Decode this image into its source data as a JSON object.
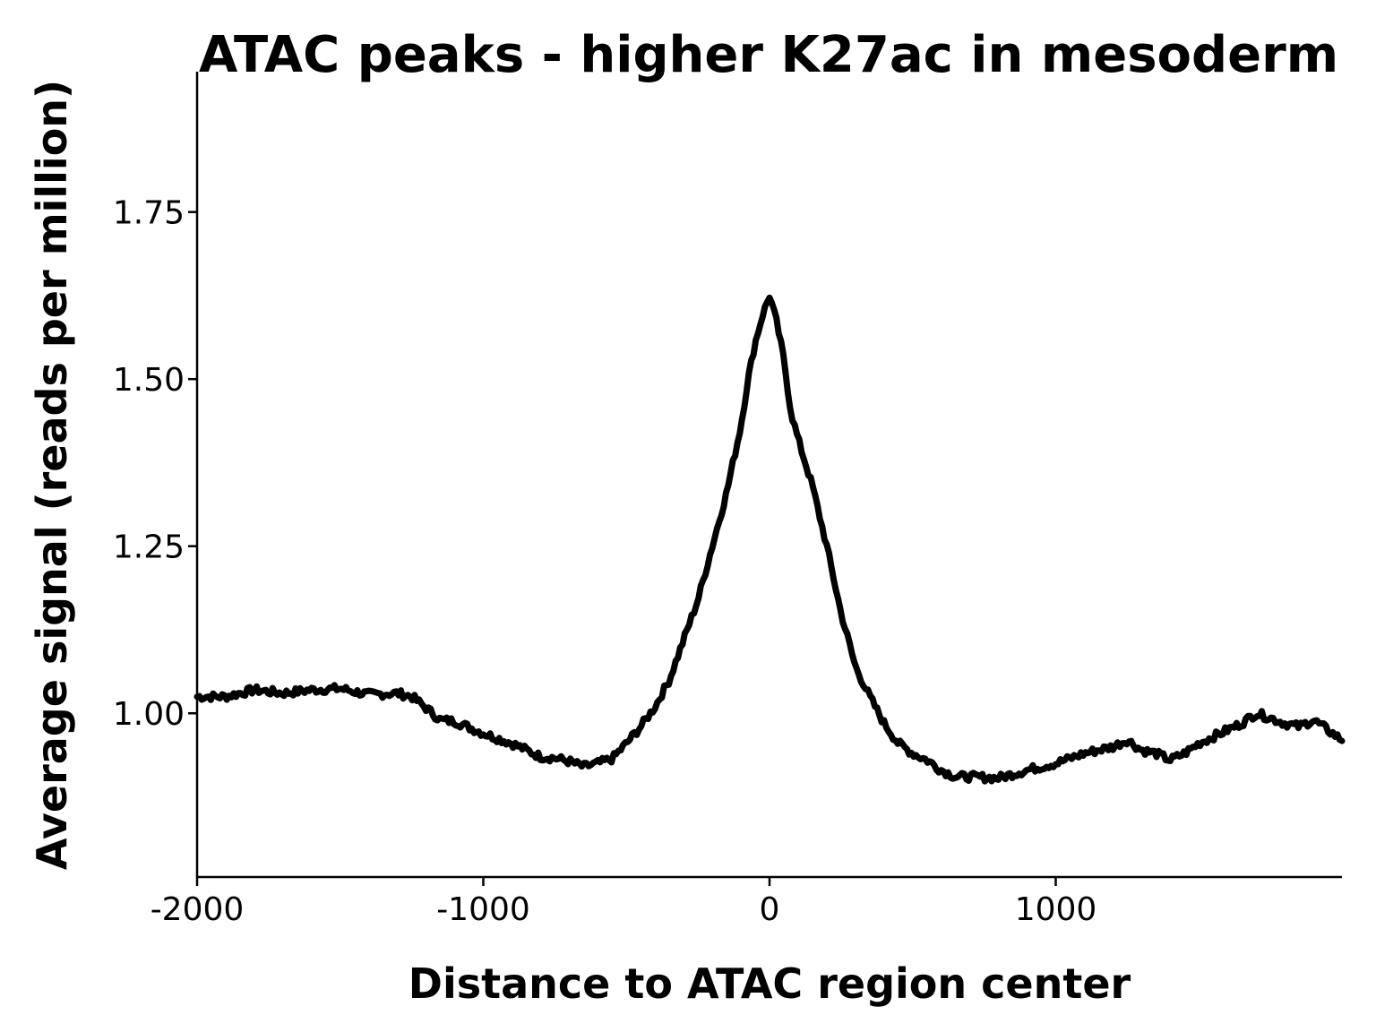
{
  "chart_data": {
    "type": "line",
    "title": "ATAC peaks - higher K27ac in mesoderm",
    "xlabel": "Distance to ATAC region center",
    "ylabel": "Average signal (reads per million)",
    "xlim": [
      -2000,
      2000
    ],
    "ylim": [
      0.755,
      1.96
    ],
    "x_ticks": [
      -2000,
      -1000,
      0,
      1000
    ],
    "x_tick_labels": [
      "-2000",
      "-1000",
      "0",
      "1000"
    ],
    "y_ticks": [
      1.0,
      1.25,
      1.5,
      1.75
    ],
    "y_tick_labels": [
      "1.00",
      "1.25",
      "1.50",
      "1.75"
    ],
    "grid": false,
    "legend": "none",
    "line_color": "#000000",
    "series": [
      {
        "x": [
          -2000,
          -1900,
          -1800,
          -1700,
          -1600,
          -1500,
          -1400,
          -1300,
          -1250,
          -1200,
          -1150,
          -1100,
          -1000,
          -900,
          -850,
          -800,
          -750,
          -700,
          -650,
          -600,
          -550,
          -500,
          -450,
          -400,
          -350,
          -300,
          -250,
          -200,
          -150,
          -100,
          -75,
          -50,
          -25,
          0,
          25,
          50,
          75,
          100,
          150,
          200,
          250,
          300,
          350,
          400,
          450,
          500,
          550,
          600,
          650,
          700,
          800,
          900,
          1000,
          1100,
          1200,
          1250,
          1300,
          1350,
          1400,
          1450,
          1500,
          1550,
          1600,
          1650,
          1700,
          1750,
          1800,
          1850,
          1900,
          1950,
          2000
        ],
        "y": [
          1.025,
          1.025,
          1.035,
          1.03,
          1.035,
          1.037,
          1.028,
          1.03,
          1.025,
          1.008,
          0.99,
          0.988,
          0.97,
          0.955,
          0.945,
          0.935,
          0.933,
          0.928,
          0.92,
          0.925,
          0.932,
          0.955,
          0.98,
          1.01,
          1.05,
          1.11,
          1.17,
          1.25,
          1.33,
          1.43,
          1.5,
          1.555,
          1.595,
          1.625,
          1.585,
          1.53,
          1.45,
          1.41,
          1.34,
          1.25,
          1.15,
          1.07,
          1.025,
          0.985,
          0.955,
          0.94,
          0.93,
          0.915,
          0.905,
          0.905,
          0.903,
          0.915,
          0.925,
          0.94,
          0.95,
          0.96,
          0.945,
          0.94,
          0.93,
          0.94,
          0.955,
          0.965,
          0.975,
          0.985,
          1.0,
          0.993,
          0.985,
          0.98,
          0.99,
          0.975,
          0.96
        ]
      }
    ]
  }
}
